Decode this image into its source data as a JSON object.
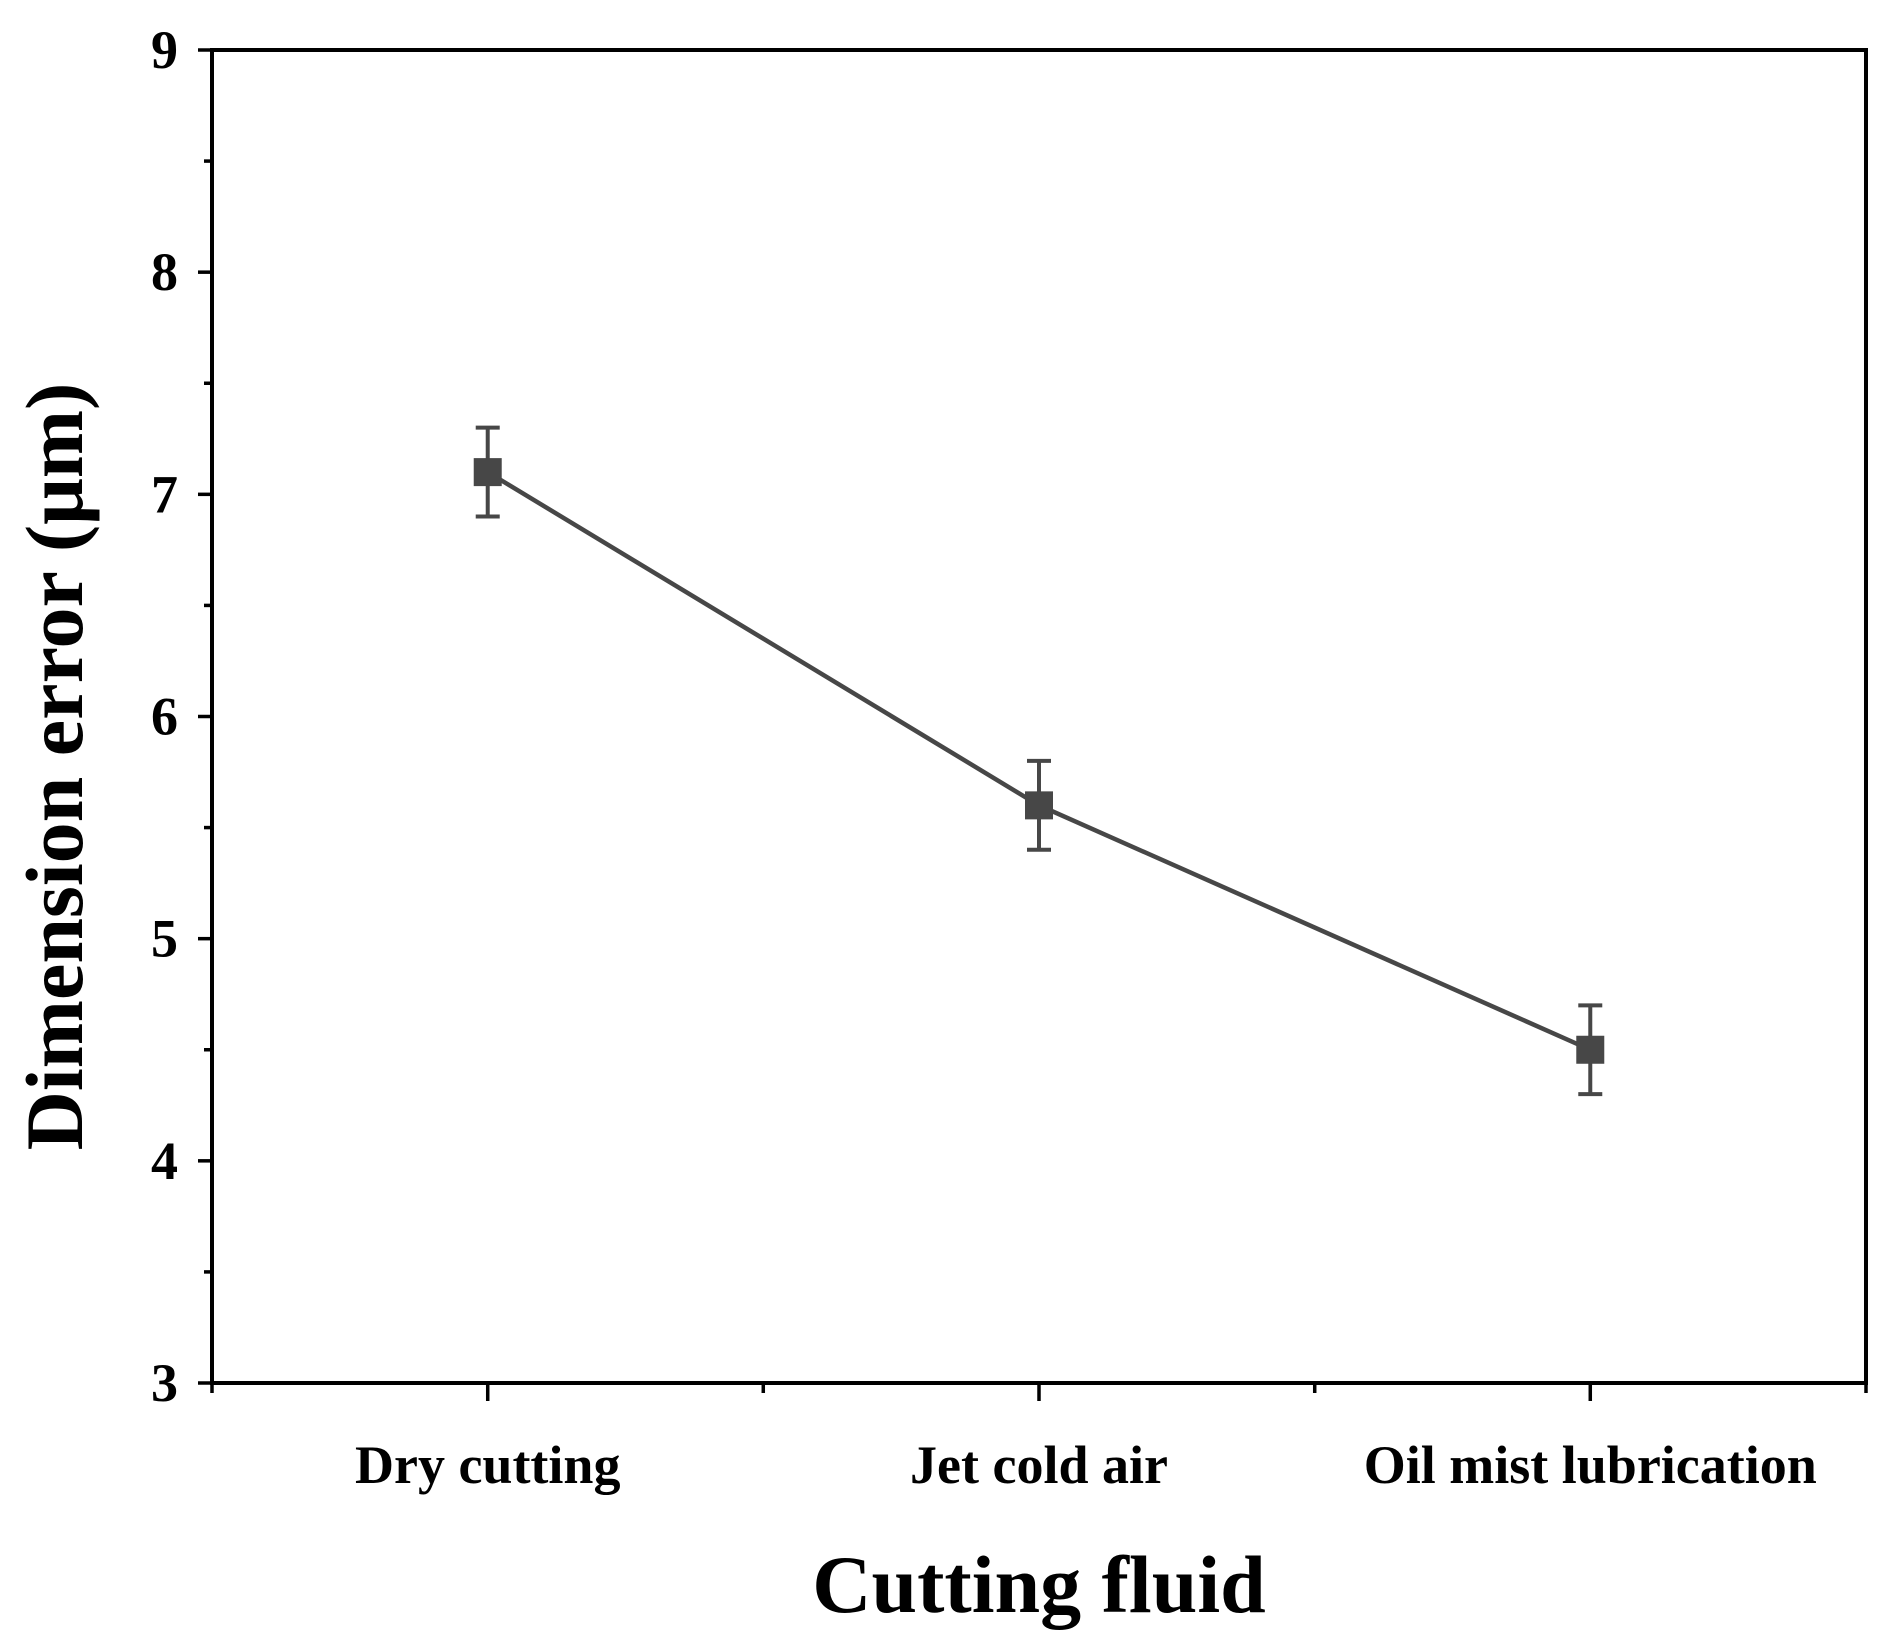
{
  "chart_data": {
    "type": "line",
    "categories": [
      "Dry cutting",
      "Jet cold air",
      "Oil mist lubrication"
    ],
    "series": [
      {
        "values": [
          7.1,
          5.6,
          4.5
        ],
        "error": [
          0.2,
          0.2,
          0.2
        ],
        "marker": "square",
        "color": "#474747"
      }
    ],
    "xlabel": "Cutting fluid",
    "ylabel": "Dimension error (μm)",
    "ylim": [
      3,
      9
    ],
    "yticks": [
      3,
      4,
      5,
      6,
      7,
      8,
      9
    ],
    "grid": false
  }
}
